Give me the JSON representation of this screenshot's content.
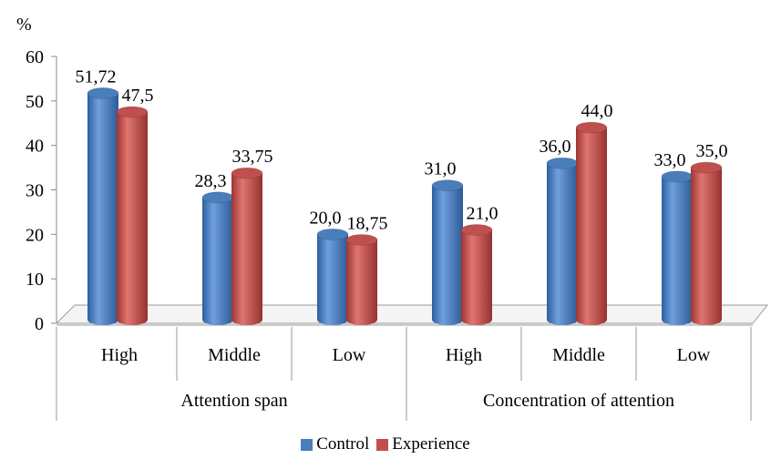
{
  "chart_data": {
    "type": "bar",
    "ylabel": "%",
    "ylim": [
      0,
      60
    ],
    "yticks": [
      0,
      10,
      20,
      30,
      40,
      50,
      60
    ],
    "groups": [
      {
        "label": "Attention span",
        "categories": [
          "High",
          "Middle",
          "Low"
        ]
      },
      {
        "label": "Concentration of attention",
        "categories": [
          "High",
          "Middle",
          "Low"
        ]
      }
    ],
    "series": [
      {
        "name": "Control",
        "color": "#4a7ebb",
        "values": [
          51.72,
          28.3,
          20.0,
          31.0,
          36.0,
          33.0
        ],
        "labels": [
          "51,72",
          "28,3",
          "20,0",
          "31,0",
          "36,0",
          "33,0"
        ]
      },
      {
        "name": "Experience",
        "color": "#c0504d",
        "values": [
          47.5,
          33.75,
          18.75,
          21.0,
          44.0,
          35.0
        ],
        "labels": [
          "47,5",
          "33,75",
          "18,75",
          "21,0",
          "44,0",
          "35,0"
        ]
      }
    ],
    "legend_position": "bottom",
    "grid": false
  }
}
